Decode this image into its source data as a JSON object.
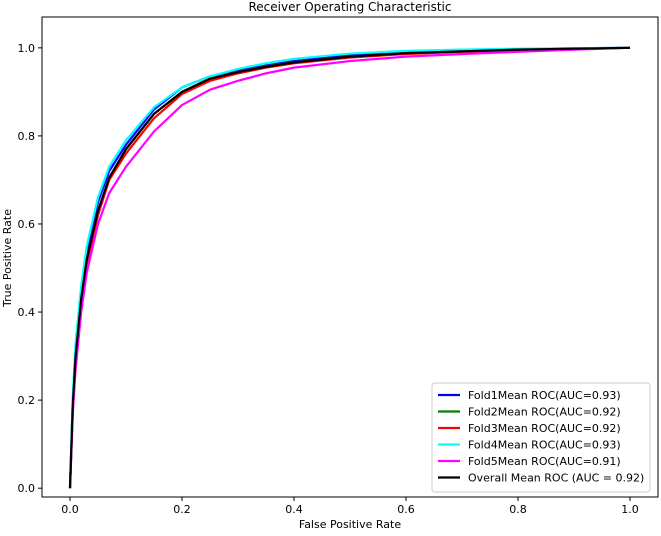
{
  "chart_data": {
    "type": "line",
    "title": "Receiver Operating Characteristic",
    "xlabel": "False Positive Rate",
    "ylabel": "True Positive Rate",
    "xlim": [
      -0.05,
      1.05
    ],
    "ylim": [
      -0.02,
      1.07
    ],
    "xticks": [
      "0.0",
      "0.2",
      "0.4",
      "0.6",
      "0.8",
      "1.0"
    ],
    "yticks": [
      "0.0",
      "0.2",
      "0.4",
      "0.6",
      "0.8",
      "1.0"
    ],
    "grid": false,
    "legend_position": "lower-right",
    "x": [
      0.0,
      0.005,
      0.01,
      0.02,
      0.03,
      0.05,
      0.07,
      0.1,
      0.15,
      0.2,
      0.25,
      0.3,
      0.35,
      0.4,
      0.5,
      0.6,
      0.7,
      0.8,
      0.9,
      1.0
    ],
    "series": [
      {
        "name": "Fold1Mean ROC(AUC=0.93)",
        "color": "#0000ff",
        "values": [
          0.0,
          0.2,
          0.32,
          0.45,
          0.54,
          0.65,
          0.72,
          0.78,
          0.86,
          0.91,
          0.935,
          0.95,
          0.96,
          0.97,
          0.983,
          0.99,
          0.994,
          0.997,
          0.999,
          1.0
        ]
      },
      {
        "name": "Fold2Mean ROC(AUC=0.92)",
        "color": "#008000",
        "values": [
          0.0,
          0.19,
          0.3,
          0.43,
          0.52,
          0.63,
          0.7,
          0.77,
          0.85,
          0.9,
          0.93,
          0.945,
          0.958,
          0.967,
          0.98,
          0.988,
          0.993,
          0.996,
          0.998,
          1.0
        ]
      },
      {
        "name": "Fold3Mean ROC(AUC=0.92)",
        "color": "#ff0000",
        "values": [
          0.0,
          0.18,
          0.29,
          0.42,
          0.51,
          0.62,
          0.7,
          0.76,
          0.84,
          0.895,
          0.925,
          0.942,
          0.955,
          0.965,
          0.978,
          0.986,
          0.991,
          0.995,
          0.998,
          1.0
        ]
      },
      {
        "name": "Fold4Mean ROC(AUC=0.93)",
        "color": "#00ffff",
        "values": [
          0.0,
          0.21,
          0.33,
          0.46,
          0.55,
          0.66,
          0.73,
          0.79,
          0.865,
          0.91,
          0.935,
          0.952,
          0.965,
          0.975,
          0.987,
          0.993,
          0.996,
          0.998,
          0.999,
          1.0
        ]
      },
      {
        "name": "Fold5Mean ROC(AUC=0.91)",
        "color": "#ff00ff",
        "values": [
          0.0,
          0.17,
          0.27,
          0.4,
          0.49,
          0.6,
          0.67,
          0.73,
          0.81,
          0.87,
          0.905,
          0.925,
          0.942,
          0.955,
          0.97,
          0.98,
          0.986,
          0.991,
          0.996,
          1.0
        ]
      },
      {
        "name": "Overall Mean ROC (AUC = 0.92)",
        "color": "#000000",
        "values": [
          0.0,
          0.19,
          0.3,
          0.43,
          0.52,
          0.63,
          0.705,
          0.77,
          0.85,
          0.9,
          0.93,
          0.945,
          0.957,
          0.967,
          0.98,
          0.988,
          0.992,
          0.996,
          0.998,
          1.0
        ]
      }
    ]
  }
}
